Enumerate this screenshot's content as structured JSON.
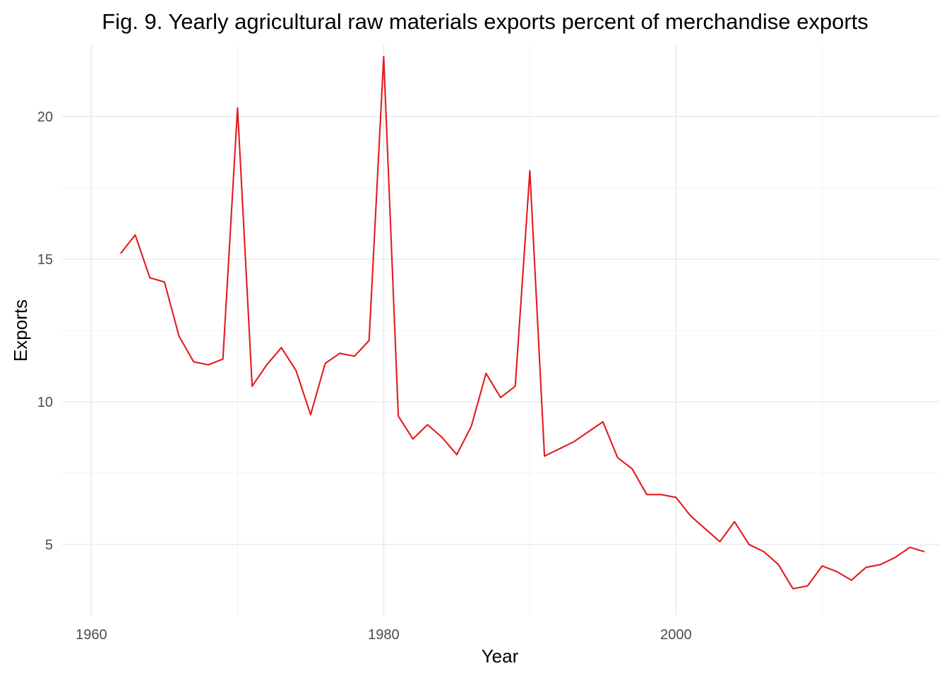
{
  "chart_data": {
    "type": "line",
    "title": "Fig. 9. Yearly agricultural raw materials exports percent of merchandise exports",
    "xlabel": "Year",
    "ylabel": "Exports",
    "xlim": [
      1958,
      2018
    ],
    "ylim": [
      2.5,
      22.5
    ],
    "x_ticks": [
      1960,
      1980,
      2000
    ],
    "x_minor_ticks": [
      1970,
      1990,
      2010
    ],
    "y_ticks": [
      5,
      10,
      15,
      20
    ],
    "y_minor_ticks": [
      7.5,
      12.5,
      17.5
    ],
    "grid": true,
    "line_color": "#e41a1c",
    "series": [
      {
        "x": [
          1962,
          1963,
          1964,
          1965,
          1966,
          1967,
          1968,
          1969,
          1970,
          1971,
          1972,
          1973,
          1974,
          1975,
          1976,
          1977,
          1978,
          1979,
          1980,
          1981,
          1982,
          1983,
          1984,
          1985,
          1986,
          1987,
          1988,
          1989,
          1990,
          1991,
          1992,
          1993,
          1994,
          1995,
          1996,
          1997,
          1998,
          1999,
          2000,
          2001,
          2002,
          2003,
          2004,
          2005,
          2006,
          2007,
          2008,
          2009,
          2010,
          2011,
          2012,
          2013,
          2014,
          2015,
          2016,
          2017
        ],
        "values": [
          15.2,
          15.85,
          14.35,
          14.2,
          12.3,
          11.4,
          11.3,
          11.5,
          20.3,
          10.55,
          11.3,
          11.9,
          11.1,
          9.55,
          11.35,
          11.7,
          11.6,
          12.15,
          22.1,
          9.5,
          8.7,
          9.2,
          8.75,
          8.15,
          9.15,
          11.0,
          10.15,
          10.55,
          18.1,
          8.1,
          8.35,
          8.6,
          8.95,
          9.3,
          8.05,
          7.65,
          6.75,
          6.75,
          6.65,
          6.0,
          5.55,
          5.1,
          5.8,
          5.0,
          4.75,
          4.3,
          3.45,
          3.55,
          4.25,
          4.05,
          3.75,
          4.2,
          4.3,
          4.55,
          4.9,
          4.75
        ]
      }
    ]
  }
}
